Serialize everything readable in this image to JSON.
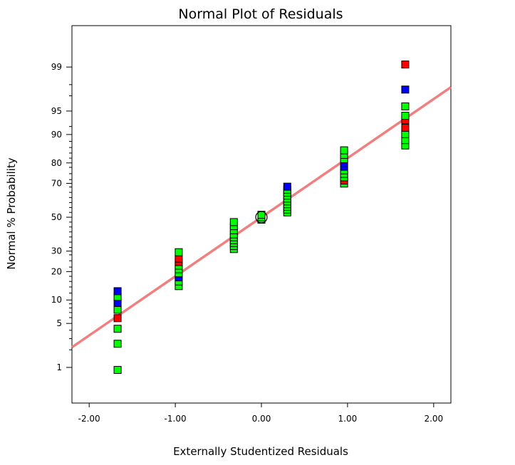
{
  "chart_data": {
    "type": "scatter",
    "title": "Normal Plot of Residuals",
    "xlabel": "Externally Studentized Residuals",
    "ylabel": "Normal % Probability",
    "y_scale": "normal-probability",
    "xlim": [
      -2.2,
      2.2
    ],
    "ylim": [
      0.2,
      99.85
    ],
    "x_ticks": [
      {
        "value": -2,
        "label": "-2.00"
      },
      {
        "value": -1,
        "label": "-1.00"
      },
      {
        "value": 0,
        "label": "0.00"
      },
      {
        "value": 1,
        "label": "1.00"
      },
      {
        "value": 2,
        "label": "2.00"
      }
    ],
    "y_ticks_labeled": [
      {
        "value": 1,
        "label": "1"
      },
      {
        "value": 5,
        "label": "5"
      },
      {
        "value": 10,
        "label": "10"
      },
      {
        "value": 20,
        "label": "20"
      },
      {
        "value": 30,
        "label": "30"
      },
      {
        "value": 50,
        "label": "50"
      },
      {
        "value": 70,
        "label": "70"
      },
      {
        "value": 80,
        "label": "80"
      },
      {
        "value": 90,
        "label": "90"
      },
      {
        "value": 95,
        "label": "95"
      },
      {
        "value": 99,
        "label": "99"
      }
    ],
    "y_ticks_minor": [
      2,
      3,
      4,
      6,
      7,
      8,
      9,
      12,
      14,
      16,
      18,
      22,
      25,
      28,
      32,
      35,
      38,
      41,
      44,
      47,
      53,
      56,
      59,
      62,
      65,
      68,
      72,
      75,
      78,
      82,
      84,
      86,
      88,
      92,
      97,
      98
    ],
    "reference_line": {
      "color": "#f08080",
      "points": [
        [
          -2.2,
          2.2
        ],
        [
          2.2,
          97.8
        ]
      ]
    },
    "colors": {
      "green": "#00ff00",
      "blue": "#0000ff",
      "red": "#ff0000",
      "outline": "#000000"
    },
    "highlight_point": {
      "x": 0.0,
      "y": 50
    },
    "points": [
      {
        "x": -1.67,
        "y": 0.9,
        "color": "green"
      },
      {
        "x": -1.67,
        "y": 2.5,
        "color": "green"
      },
      {
        "x": -1.67,
        "y": 4.2,
        "color": "green"
      },
      {
        "x": -1.67,
        "y": 5.9,
        "color": "red"
      },
      {
        "x": -1.67,
        "y": 7.6,
        "color": "green"
      },
      {
        "x": -1.67,
        "y": 9.2,
        "color": "blue"
      },
      {
        "x": -1.67,
        "y": 10.9,
        "color": "green"
      },
      {
        "x": -1.67,
        "y": 12.6,
        "color": "blue"
      },
      {
        "x": -0.96,
        "y": 14.3,
        "color": "green"
      },
      {
        "x": -0.96,
        "y": 16.0,
        "color": "green"
      },
      {
        "x": -0.96,
        "y": 17.6,
        "color": "blue"
      },
      {
        "x": -0.96,
        "y": 19.3,
        "color": "green"
      },
      {
        "x": -0.96,
        "y": 21.0,
        "color": "green"
      },
      {
        "x": -0.96,
        "y": 22.7,
        "color": "green"
      },
      {
        "x": -0.96,
        "y": 24.4,
        "color": "red"
      },
      {
        "x": -0.96,
        "y": 26.1,
        "color": "red"
      },
      {
        "x": -0.96,
        "y": 29.4,
        "color": "green"
      },
      {
        "x": -0.32,
        "y": 31.1,
        "color": "green"
      },
      {
        "x": -0.32,
        "y": 32.8,
        "color": "green"
      },
      {
        "x": -0.32,
        "y": 34.5,
        "color": "green"
      },
      {
        "x": -0.32,
        "y": 36.1,
        "color": "green"
      },
      {
        "x": -0.32,
        "y": 37.8,
        "color": "green"
      },
      {
        "x": -0.32,
        "y": 39.5,
        "color": "green"
      },
      {
        "x": -0.32,
        "y": 42.0,
        "color": "green"
      },
      {
        "x": -0.32,
        "y": 44.5,
        "color": "green"
      },
      {
        "x": -0.32,
        "y": 47.0,
        "color": "green"
      },
      {
        "x": 0.0,
        "y": 48.5,
        "color": "green"
      },
      {
        "x": 0.0,
        "y": 50.0,
        "color": "green"
      },
      {
        "x": 0.0,
        "y": 51.5,
        "color": "green"
      },
      {
        "x": 0.3,
        "y": 53.0,
        "color": "green"
      },
      {
        "x": 0.3,
        "y": 54.7,
        "color": "green"
      },
      {
        "x": 0.3,
        "y": 56.4,
        "color": "green"
      },
      {
        "x": 0.3,
        "y": 58.0,
        "color": "green"
      },
      {
        "x": 0.3,
        "y": 59.7,
        "color": "green"
      },
      {
        "x": 0.3,
        "y": 61.4,
        "color": "green"
      },
      {
        "x": 0.3,
        "y": 63.1,
        "color": "green"
      },
      {
        "x": 0.3,
        "y": 64.8,
        "color": "green"
      },
      {
        "x": 0.3,
        "y": 66.5,
        "color": "green"
      },
      {
        "x": 0.3,
        "y": 68.2,
        "color": "blue"
      },
      {
        "x": 0.96,
        "y": 69.9,
        "color": "green"
      },
      {
        "x": 0.96,
        "y": 71.5,
        "color": "red"
      },
      {
        "x": 0.96,
        "y": 73.2,
        "color": "green"
      },
      {
        "x": 0.96,
        "y": 74.9,
        "color": "green"
      },
      {
        "x": 0.96,
        "y": 76.6,
        "color": "green"
      },
      {
        "x": 0.96,
        "y": 78.3,
        "color": "blue"
      },
      {
        "x": 0.96,
        "y": 80.0,
        "color": "blue"
      },
      {
        "x": 0.96,
        "y": 81.6,
        "color": "green"
      },
      {
        "x": 0.96,
        "y": 83.3,
        "color": "green"
      },
      {
        "x": 0.96,
        "y": 85.0,
        "color": "green"
      },
      {
        "x": 1.67,
        "y": 86.7,
        "color": "green"
      },
      {
        "x": 1.67,
        "y": 88.4,
        "color": "green"
      },
      {
        "x": 1.67,
        "y": 90.1,
        "color": "green"
      },
      {
        "x": 1.67,
        "y": 91.7,
        "color": "red"
      },
      {
        "x": 1.67,
        "y": 93.4,
        "color": "red"
      },
      {
        "x": 1.67,
        "y": 94.2,
        "color": "green"
      },
      {
        "x": 1.67,
        "y": 95.7,
        "color": "green"
      },
      {
        "x": 1.67,
        "y": 97.6,
        "color": "blue"
      },
      {
        "x": 1.67,
        "y": 99.1,
        "color": "red"
      }
    ]
  }
}
